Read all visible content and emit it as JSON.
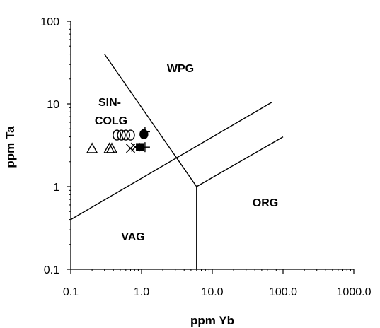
{
  "chart_data": {
    "type": "scatter",
    "title": "",
    "xlabel": "ppm Yb",
    "ylabel": "ppm Ta",
    "xscale": "log",
    "yscale": "log",
    "xlim": [
      0.1,
      1000
    ],
    "ylim": [
      0.1,
      100
    ],
    "x_ticks": [
      "0.1",
      "1.0",
      "10.0",
      "100.0",
      "1000.0"
    ],
    "y_ticks": [
      "0.1",
      "1",
      "10",
      "100"
    ],
    "grid": false,
    "legend": "none",
    "field_labels": [
      "WPG",
      "SIN-\nCOLG",
      "ORG",
      "VAG"
    ],
    "boundaries": [
      {
        "points": [
          [
            0.3,
            40
          ],
          [
            6,
            1
          ],
          [
            6,
            0.1
          ]
        ]
      },
      {
        "points": [
          [
            0.1,
            0.4
          ],
          [
            70,
            10.5
          ]
        ]
      },
      {
        "points": [
          [
            6,
            1
          ],
          [
            100,
            4
          ]
        ]
      }
    ],
    "series": [
      {
        "marker": "triangle-open",
        "points": [
          [
            0.2,
            2.9
          ],
          [
            0.35,
            2.9
          ],
          [
            0.38,
            2.9
          ]
        ]
      },
      {
        "marker": "circle-open",
        "points": [
          [
            0.45,
            4.2
          ],
          [
            0.52,
            4.2
          ],
          [
            0.6,
            4.2
          ],
          [
            0.7,
            4.2
          ]
        ]
      },
      {
        "marker": "x",
        "points": [
          [
            0.7,
            2.9
          ],
          [
            0.82,
            3.0
          ]
        ]
      },
      {
        "marker": "circle-filled",
        "points": [
          [
            1.08,
            4.3
          ]
        ]
      },
      {
        "marker": "square-filled",
        "points": [
          [
            0.95,
            3.0
          ]
        ]
      },
      {
        "marker": "plus",
        "points": [
          [
            1.12,
            4.6
          ],
          [
            1.12,
            3.0
          ]
        ]
      }
    ]
  }
}
